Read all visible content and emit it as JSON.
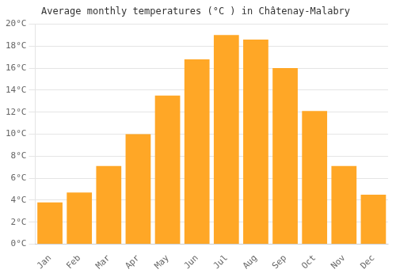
{
  "chart_data": {
    "type": "bar",
    "title": "Average monthly temperatures (°C ) in Châtenay-Malabry",
    "categories": [
      "Jan",
      "Feb",
      "Mar",
      "Apr",
      "May",
      "Jun",
      "Jul",
      "Aug",
      "Sep",
      "Oct",
      "Nov",
      "Dec"
    ],
    "values": [
      3.8,
      4.7,
      7.1,
      10.0,
      13.5,
      16.8,
      19.0,
      18.6,
      16.0,
      12.1,
      7.1,
      4.5
    ],
    "color": "#FFA726",
    "ylim": [
      0,
      20
    ],
    "yticks": [
      {
        "value": 0,
        "label": "0°C"
      },
      {
        "value": 2,
        "label": "2°C"
      },
      {
        "value": 4,
        "label": "4°C"
      },
      {
        "value": 6,
        "label": "6°C"
      },
      {
        "value": 8,
        "label": "8°C"
      },
      {
        "value": 10,
        "label": "10°C"
      },
      {
        "value": 12,
        "label": "12°C"
      },
      {
        "value": 14,
        "label": "14°C"
      },
      {
        "value": 16,
        "label": "16°C"
      },
      {
        "value": 18,
        "label": "18°C"
      },
      {
        "value": 20,
        "label": "20°C"
      }
    ],
    "grid": true
  }
}
